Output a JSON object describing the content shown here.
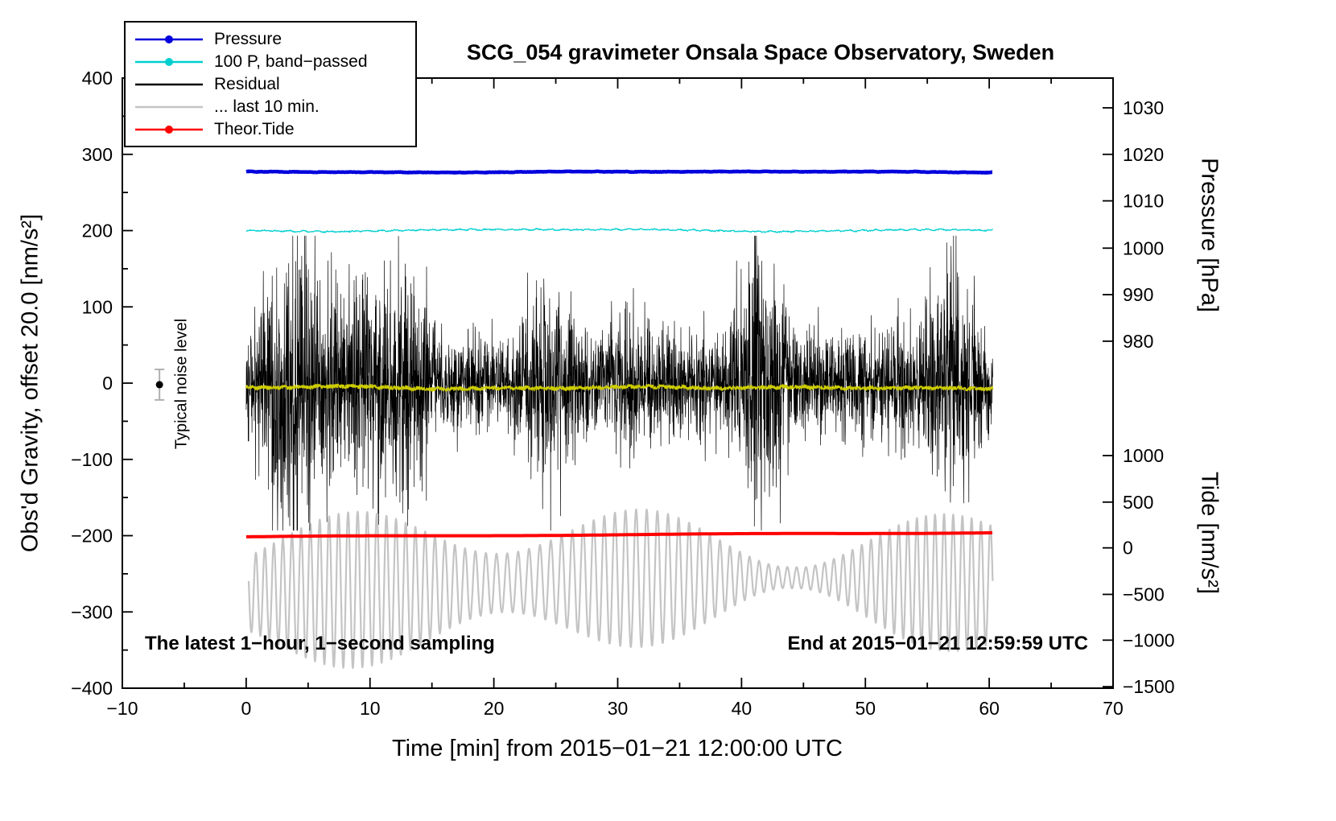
{
  "chart_data": {
    "type": "line",
    "title": "SCG_054 gravimeter Onsala Space Observatory, Sweden",
    "xlabel": "Time [min] from 2015−01−21 12:00:00 UTC",
    "ylabel_left": "Obs'd Gravity, offset 20.0 [nm/s²]",
    "ylabel_right_top": "Pressure [hPa]",
    "ylabel_right_bottom": "Tide [nm/s²]",
    "xlim": [
      -10,
      70
    ],
    "ylim_left": [
      -400,
      400
    ],
    "x_ticks": [
      -10,
      0,
      10,
      20,
      30,
      40,
      50,
      60,
      70
    ],
    "x_minor_step": 5,
    "y_ticks_left": [
      -400,
      -300,
      -200,
      -100,
      0,
      100,
      200,
      300,
      400
    ],
    "y_minor_step": 50,
    "pressure_axis": {
      "ticks": [
        1030,
        1020,
        1010,
        1000,
        990,
        980
      ],
      "gravity_positions": [
        361,
        300,
        239,
        177,
        116,
        55
      ]
    },
    "tide_axis": {
      "ticks": [
        1000,
        500,
        0,
        -500,
        -1000,
        -1500
      ],
      "gravity_positions": [
        -95,
        -156,
        -216,
        -277,
        -337,
        -398
      ]
    },
    "grid": false,
    "legend_position": "top-left",
    "legend": [
      {
        "label": "Pressure",
        "color": "#0000dd",
        "marker": true
      },
      {
        "label": "100 P, band−passed",
        "color": "#00cfcf",
        "marker": true
      },
      {
        "label": "Residual",
        "color": "#000000",
        "marker": false
      },
      {
        "label": "... last 10 min.",
        "color": "#c4c4c4",
        "marker": false
      },
      {
        "label": "Theor.Tide",
        "color": "#ff0000",
        "marker": true
      }
    ],
    "noise_marker": {
      "label": "Typical noise level",
      "x": -7,
      "y": -2,
      "upper": 18,
      "lower": -22,
      "bar_color": "#b0b0b0",
      "dot_color": "#000000"
    },
    "annotations": {
      "bottom_left": "The latest 1−hour, 1−second sampling",
      "bottom_right": "End at 2015−01−21 12:59:59 UTC"
    },
    "series": [
      {
        "name": "last-10-min",
        "color": "#c4c4c4",
        "width": 2.2,
        "seed": 55,
        "summary": "gray oscillation, center ≈ −266 (gravity units), amplitude ±30…±115, period ≈ 0.8 min, spans x 0–60",
        "gen": {
          "kind": "oscillation",
          "x0": 0.2,
          "x1": 60.3,
          "dt": 0.02,
          "center": -266,
          "amp_base": 62,
          "amp_var": 42,
          "freq": 1.25,
          "freq_var": 0.3
        }
      },
      {
        "name": "theor-tide",
        "color": "#ff0000",
        "width": 4,
        "seed": 66,
        "summary": "theoretical tide, nearly flat slight rise, ≈ 0 nm/s² on tide axis (gravity −201 → −196)",
        "gen": {
          "kind": "trend",
          "x0": 0,
          "x1": 60.25,
          "dt": 0.25,
          "y0": -201.5,
          "y1": -196,
          "wobble": 0.5
        }
      },
      {
        "name": "residual",
        "color": "#000000",
        "width": 0.7,
        "seed": 33,
        "summary": "1-second residual noise centered at 0, typical ±60, bursts to ±180",
        "gen": {
          "kind": "noise_burst",
          "x0": 0,
          "x1": 60.3,
          "dt": 0.016667,
          "center": 0,
          "base_amp": 34,
          "burst_amp": 62,
          "clip": 193,
          "burst_times": [
            4,
            9,
            12.5,
            24,
            41.5,
            57
          ],
          "burst_heights": [
            1.0,
            0.6,
            0.7,
            0.55,
            0.9,
            0.75
          ],
          "burst_width": 1.6
        }
      },
      {
        "name": "residual-filtered",
        "color": "#cccc00",
        "width": 1.6,
        "seed": 44,
        "summary": "yellow band-passed residual, center ≈ −6, amplitude ≈ ±7",
        "gen": {
          "kind": "smooth",
          "x0": 0,
          "x1": 60.3,
          "dt": 0.025,
          "center": -6,
          "slow_amp": 2.5,
          "fast_amp": 4.5
        }
      },
      {
        "name": "band-passed-pressure",
        "color": "#00cfcf",
        "width": 1.3,
        "seed": 22,
        "summary": "100 P band-passed, centered ≈ 200 gravity units, small ripples ±4",
        "gen": {
          "kind": "smooth",
          "x0": 0,
          "x1": 60.3,
          "dt": 0.05,
          "center": 200.5,
          "slow_amp": 2.2,
          "fast_amp": 1.6
        }
      },
      {
        "name": "pressure",
        "color": "#0000dd",
        "width": 4.5,
        "seed": 7,
        "summary": "air pressure ≈ 1015.5 hPa, essentially constant (gravity-axis level ≈ 277)",
        "gen": {
          "kind": "smooth",
          "x0": 0,
          "x1": 60.25,
          "dt": 0.05,
          "center": 277,
          "slow_amp": 1.0,
          "fast_amp": 0.5
        }
      }
    ]
  }
}
